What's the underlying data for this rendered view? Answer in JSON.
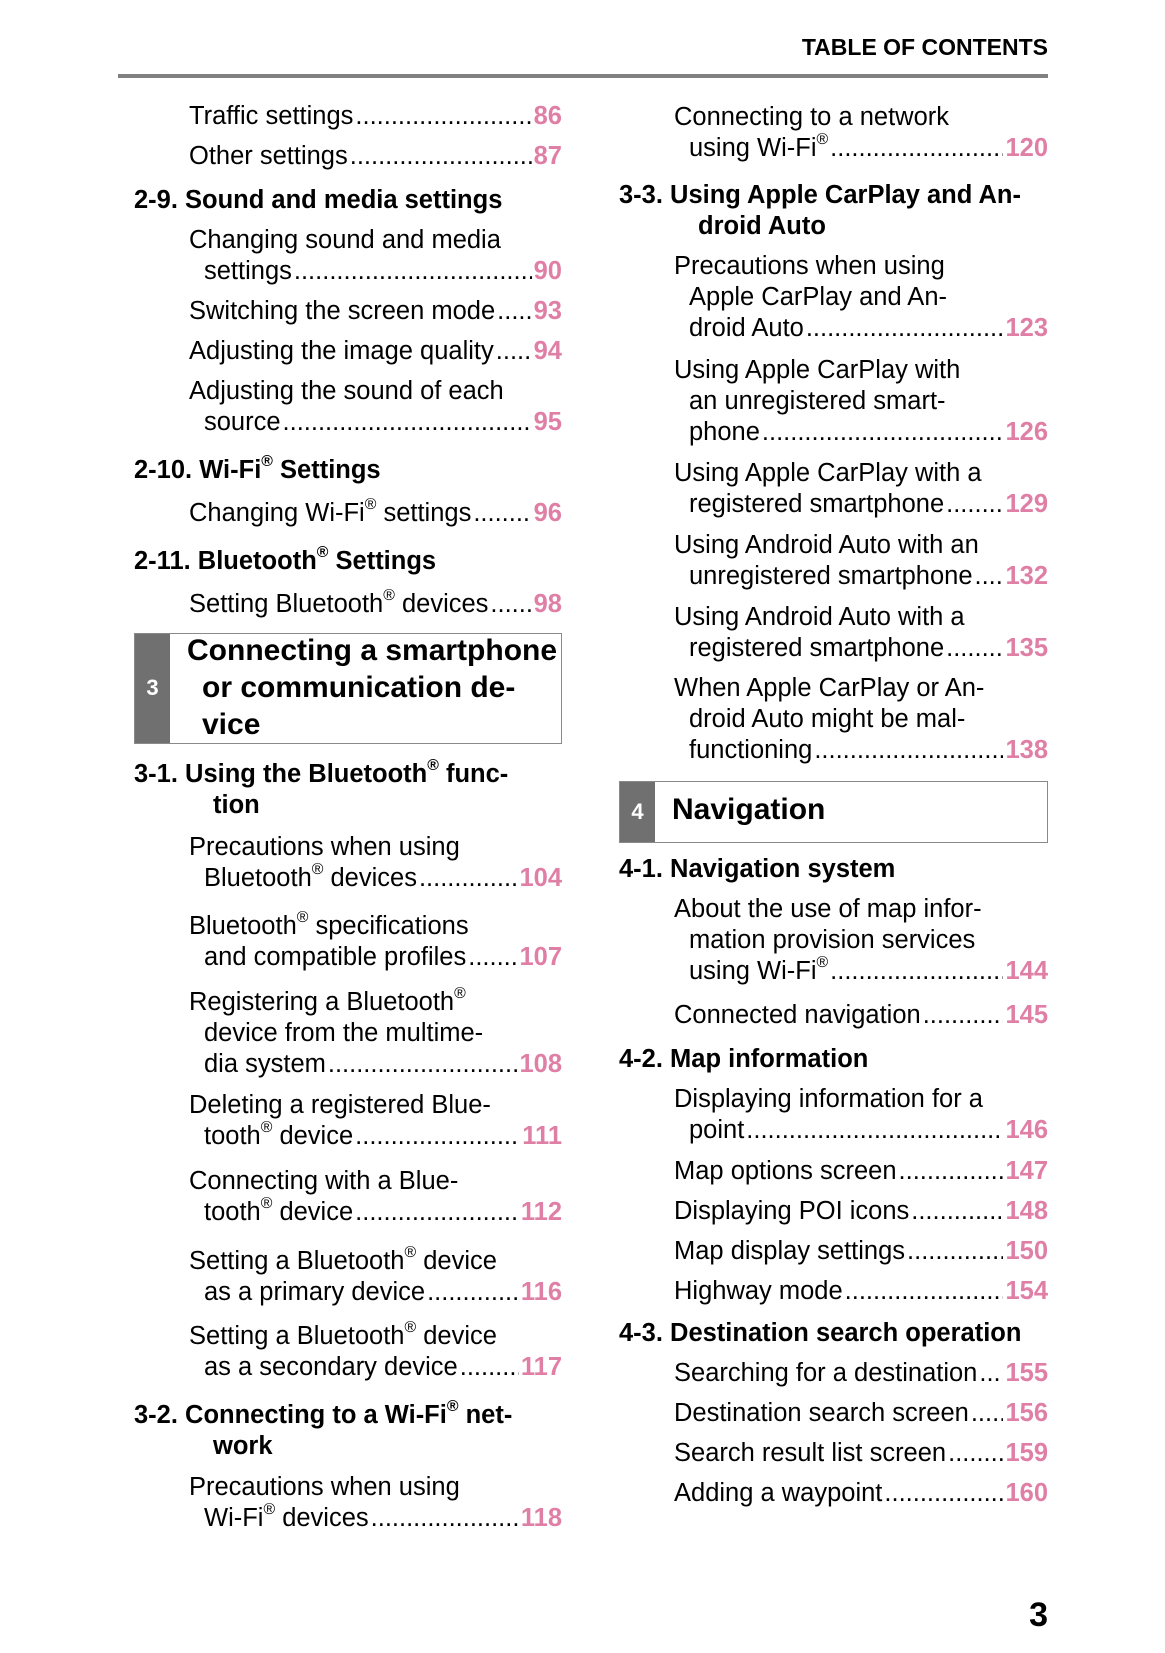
{
  "header": {
    "title": "TABLE OF CONTENTS"
  },
  "page_number": "3",
  "colors": {
    "page_ref": "#e07fa6",
    "section_tab": "#707070",
    "rule": "#808080"
  },
  "left_column": [
    {
      "type": "item",
      "lines": [
        "Traffic settings"
      ],
      "page": "86"
    },
    {
      "type": "item",
      "lines": [
        "Other settings "
      ],
      "page": "87"
    },
    {
      "type": "heading",
      "lines": [
        "2-9. Sound and media settings"
      ]
    },
    {
      "type": "item",
      "lines": [
        "Changing sound and media",
        "settings "
      ],
      "page": "90"
    },
    {
      "type": "item",
      "lines": [
        "Switching the screen mode"
      ],
      "page": "93"
    },
    {
      "type": "item",
      "lines": [
        "Adjusting the image quality"
      ],
      "page": "94"
    },
    {
      "type": "item",
      "lines": [
        "Adjusting the sound of each",
        "source"
      ],
      "page": "95"
    },
    {
      "type": "heading",
      "lines": [
        "2-10. Wi-Fi® Settings"
      ]
    },
    {
      "type": "item",
      "lines": [
        "Changing Wi-Fi® settings"
      ],
      "page": "96"
    },
    {
      "type": "heading",
      "lines": [
        "2-11. Bluetooth® Settings"
      ]
    },
    {
      "type": "item",
      "lines": [
        "Setting Bluetooth® devices "
      ],
      "page": "98"
    },
    {
      "type": "section",
      "number": "3",
      "lines": [
        "Connecting a smartphone",
        "or communication de-",
        "vice"
      ]
    },
    {
      "type": "heading",
      "lines": [
        "3-1. Using the Bluetooth® func-",
        "tion"
      ]
    },
    {
      "type": "item",
      "lines": [
        "Precautions when using",
        "Bluetooth® devices "
      ],
      "page": "104"
    },
    {
      "type": "item",
      "lines": [
        "Bluetooth® specifications",
        "and compatible profiles"
      ],
      "page": "107"
    },
    {
      "type": "item",
      "lines": [
        "Registering a Bluetooth®",
        "device from the multime-",
        "dia system "
      ],
      "page": "108"
    },
    {
      "type": "item",
      "lines": [
        "Deleting a registered Blue-",
        "tooth® device "
      ],
      "page": "111"
    },
    {
      "type": "item",
      "lines": [
        "Connecting with a Blue-",
        "tooth® device "
      ],
      "page": "112"
    },
    {
      "type": "item",
      "lines": [
        "Setting a Bluetooth® device",
        "as a primary device "
      ],
      "page": "116"
    },
    {
      "type": "item",
      "lines": [
        "Setting a Bluetooth® device",
        "as a secondary device"
      ],
      "page": "117"
    },
    {
      "type": "heading",
      "lines": [
        "3-2. Connecting to a Wi-Fi® net-",
        "work"
      ]
    },
    {
      "type": "item",
      "lines": [
        "Precautions when using",
        "Wi-Fi® devices"
      ],
      "page": "118"
    }
  ],
  "right_column": [
    {
      "type": "item",
      "lines": [
        "Connecting to a network",
        "using Wi-Fi® "
      ],
      "page": "120"
    },
    {
      "type": "heading",
      "lines": [
        "3-3. Using Apple CarPlay and An-",
        "droid Auto"
      ]
    },
    {
      "type": "item",
      "lines": [
        "Precautions when using",
        "Apple CarPlay and An-",
        "droid Auto "
      ],
      "page": "123"
    },
    {
      "type": "item",
      "lines": [
        "Using Apple CarPlay with",
        "an unregistered smart-",
        "phone"
      ],
      "page": "126"
    },
    {
      "type": "item",
      "lines": [
        "Using Apple CarPlay with a",
        "registered smartphone"
      ],
      "page": "129"
    },
    {
      "type": "item",
      "lines": [
        "Using Android Auto with an",
        "unregistered smartphone"
      ],
      "page": "132"
    },
    {
      "type": "item",
      "lines": [
        "Using Android Auto with a",
        "registered smartphone"
      ],
      "page": "135"
    },
    {
      "type": "item",
      "lines": [
        "When Apple CarPlay or An-",
        "droid Auto might be mal-",
        "functioning "
      ],
      "page": "138"
    },
    {
      "type": "section",
      "number": "4",
      "lines": [
        "Navigation"
      ]
    },
    {
      "type": "heading",
      "lines": [
        "4-1. Navigation system"
      ]
    },
    {
      "type": "item",
      "lines": [
        "About the use of map infor-",
        "mation provision services",
        "using Wi-Fi®"
      ],
      "page": "144"
    },
    {
      "type": "item",
      "lines": [
        "Connected navigation "
      ],
      "page": "145"
    },
    {
      "type": "heading",
      "lines": [
        "4-2. Map information"
      ]
    },
    {
      "type": "item",
      "lines": [
        "Displaying information for a",
        "point"
      ],
      "page": "146"
    },
    {
      "type": "item",
      "lines": [
        "Map options screen "
      ],
      "page": "147"
    },
    {
      "type": "item",
      "lines": [
        "Displaying POI icons"
      ],
      "page": "148"
    },
    {
      "type": "item",
      "lines": [
        "Map display settings "
      ],
      "page": "150"
    },
    {
      "type": "item",
      "lines": [
        "Highway mode "
      ],
      "page": "154"
    },
    {
      "type": "heading",
      "lines": [
        "4-3. Destination search operation"
      ]
    },
    {
      "type": "item",
      "lines": [
        "Searching for a destination "
      ],
      "page": "155"
    },
    {
      "type": "item",
      "lines": [
        "Destination search screen "
      ],
      "page": "156"
    },
    {
      "type": "item",
      "lines": [
        "Search result list screen "
      ],
      "page": "159"
    },
    {
      "type": "item",
      "lines": [
        "Adding a waypoint "
      ],
      "page": "160"
    }
  ]
}
